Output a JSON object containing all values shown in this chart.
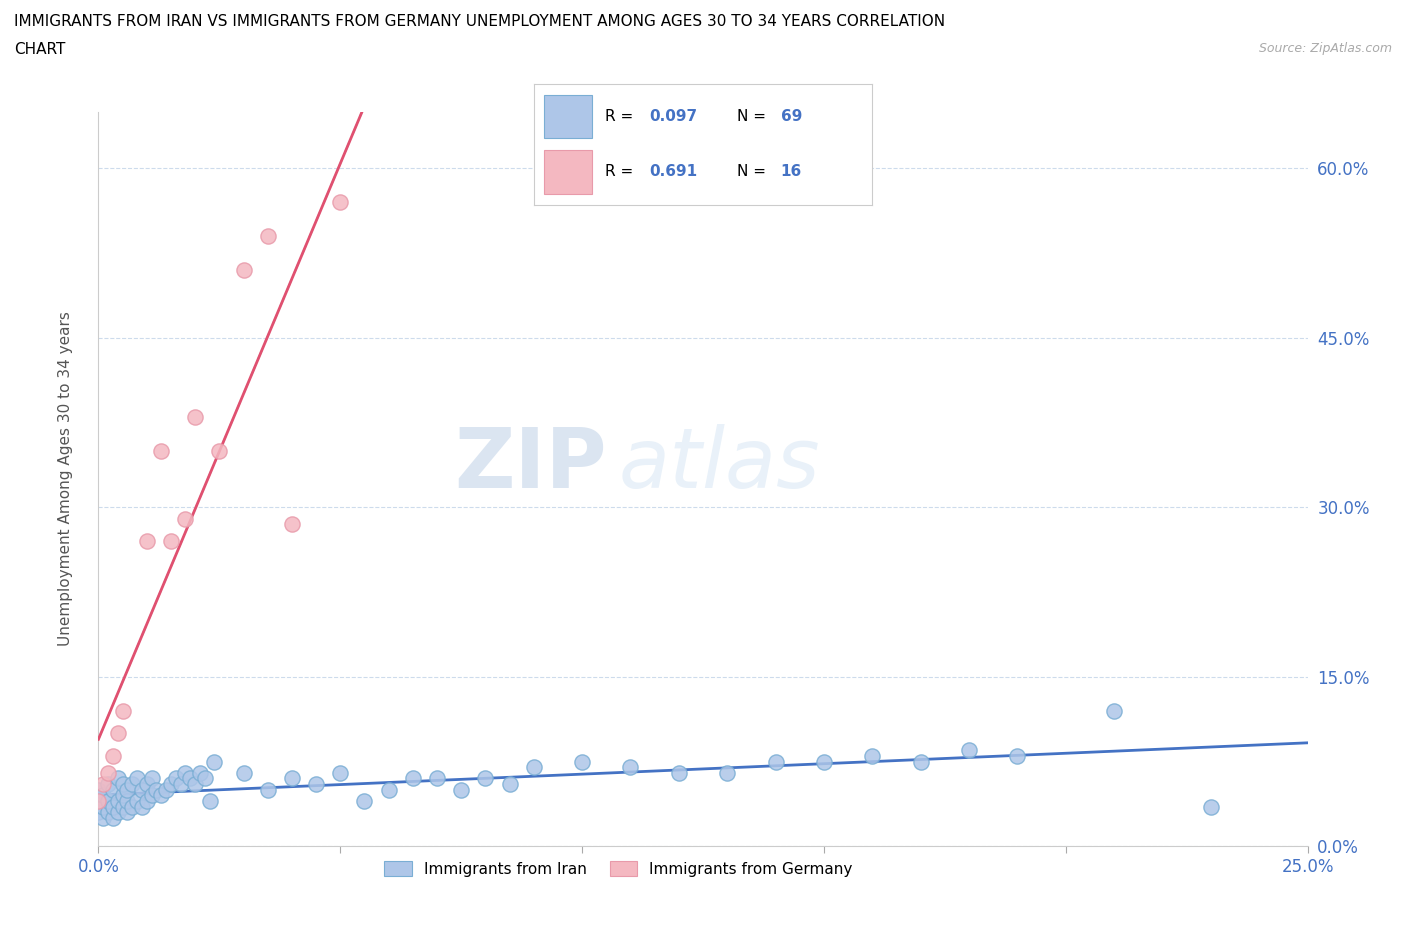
{
  "title_line1": "IMMIGRANTS FROM IRAN VS IMMIGRANTS FROM GERMANY UNEMPLOYMENT AMONG AGES 30 TO 34 YEARS CORRELATION",
  "title_line2": "CHART",
  "source_text": "Source: ZipAtlas.com",
  "ylabel": "Unemployment Among Ages 30 to 34 years",
  "xlim": [
    0.0,
    0.25
  ],
  "ylim": [
    0.0,
    0.65
  ],
  "x_ticks": [
    0.0,
    0.05,
    0.1,
    0.15,
    0.2,
    0.25
  ],
  "y_ticks": [
    0.0,
    0.15,
    0.3,
    0.45,
    0.6
  ],
  "iran_color": "#aec6e8",
  "iran_edge_color": "#7aaed4",
  "germany_color": "#f4b8c1",
  "germany_edge_color": "#e89aaa",
  "iran_line_color": "#4472c4",
  "germany_line_color": "#e05070",
  "gray_dash_color": "#bbbbbb",
  "legend_r_iran": "0.097",
  "legend_n_iran": "69",
  "legend_r_germany": "0.691",
  "legend_n_germany": "16",
  "watermark_zip": "ZIP",
  "watermark_atlas": "atlas",
  "iran_x": [
    0.0,
    0.0,
    0.0,
    0.001,
    0.001,
    0.001,
    0.002,
    0.002,
    0.002,
    0.003,
    0.003,
    0.003,
    0.004,
    0.004,
    0.004,
    0.005,
    0.005,
    0.005,
    0.006,
    0.006,
    0.006,
    0.007,
    0.007,
    0.008,
    0.008,
    0.009,
    0.009,
    0.01,
    0.01,
    0.011,
    0.011,
    0.012,
    0.013,
    0.014,
    0.015,
    0.016,
    0.017,
    0.018,
    0.019,
    0.02,
    0.021,
    0.022,
    0.023,
    0.024,
    0.03,
    0.035,
    0.04,
    0.045,
    0.05,
    0.055,
    0.06,
    0.065,
    0.07,
    0.075,
    0.08,
    0.085,
    0.09,
    0.1,
    0.11,
    0.12,
    0.13,
    0.14,
    0.15,
    0.16,
    0.17,
    0.18,
    0.19,
    0.21,
    0.23
  ],
  "iran_y": [
    0.03,
    0.04,
    0.05,
    0.025,
    0.035,
    0.045,
    0.03,
    0.04,
    0.055,
    0.025,
    0.035,
    0.05,
    0.03,
    0.04,
    0.06,
    0.035,
    0.045,
    0.055,
    0.03,
    0.04,
    0.05,
    0.035,
    0.055,
    0.04,
    0.06,
    0.035,
    0.05,
    0.04,
    0.055,
    0.045,
    0.06,
    0.05,
    0.045,
    0.05,
    0.055,
    0.06,
    0.055,
    0.065,
    0.06,
    0.055,
    0.065,
    0.06,
    0.04,
    0.075,
    0.065,
    0.05,
    0.06,
    0.055,
    0.065,
    0.04,
    0.05,
    0.06,
    0.06,
    0.05,
    0.06,
    0.055,
    0.07,
    0.075,
    0.07,
    0.065,
    0.065,
    0.075,
    0.075,
    0.08,
    0.075,
    0.085,
    0.08,
    0.12,
    0.035
  ],
  "germany_x": [
    0.0,
    0.001,
    0.002,
    0.003,
    0.004,
    0.005,
    0.01,
    0.013,
    0.015,
    0.018,
    0.02,
    0.025,
    0.03,
    0.035,
    0.04,
    0.05
  ],
  "germany_y": [
    0.04,
    0.055,
    0.065,
    0.08,
    0.1,
    0.12,
    0.27,
    0.35,
    0.27,
    0.29,
    0.38,
    0.35,
    0.51,
    0.54,
    0.285,
    0.57
  ]
}
